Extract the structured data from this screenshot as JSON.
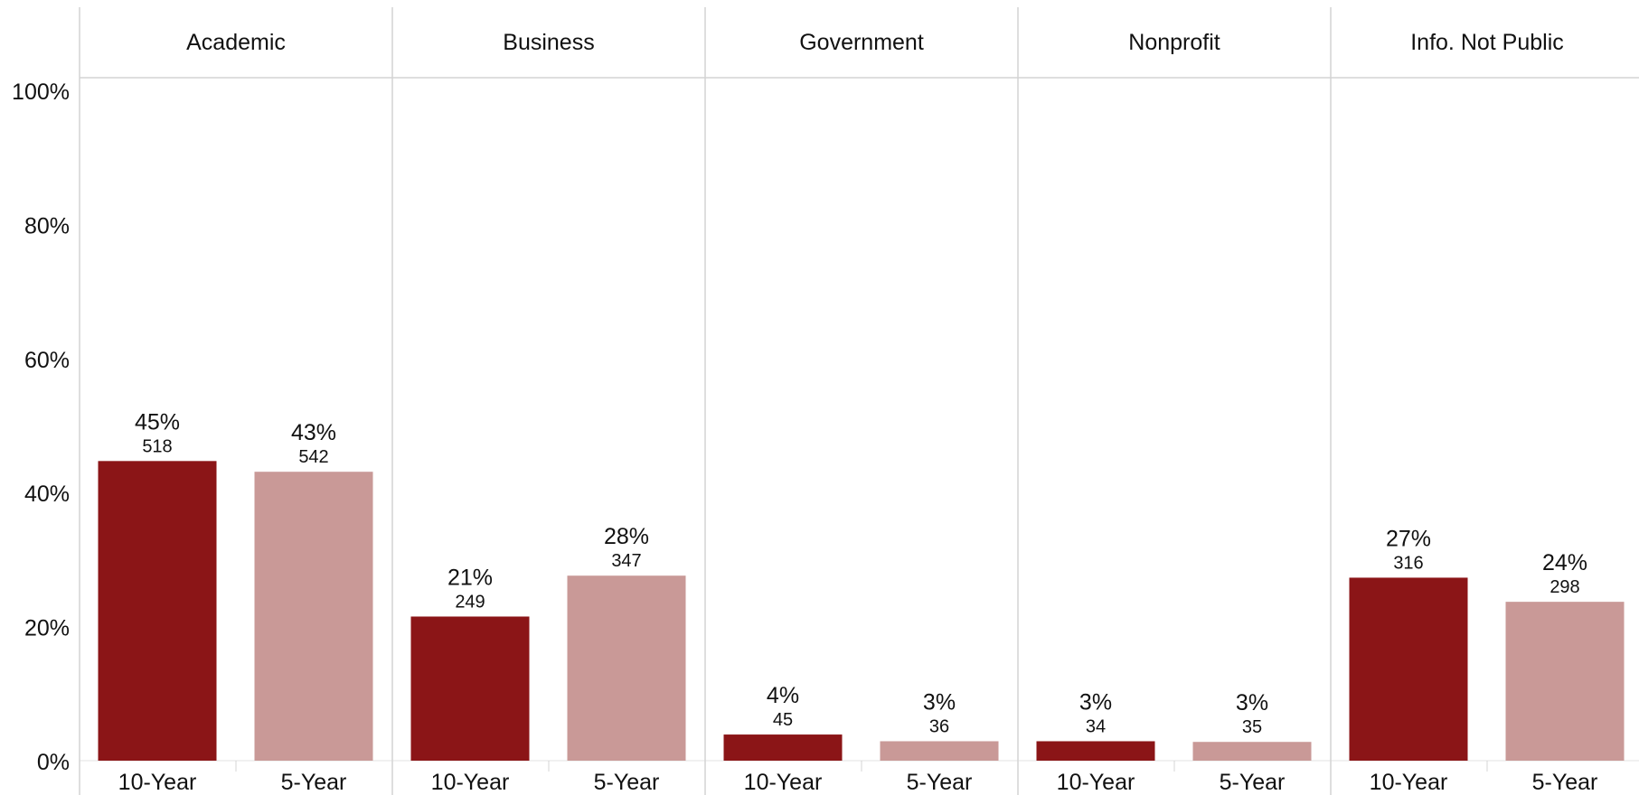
{
  "chart_data": {
    "type": "bar",
    "panels": [
      "Academic",
      "Business",
      "Government",
      "Nonprofit",
      "Info. Not Public"
    ],
    "categories": [
      "10-Year",
      "5-Year"
    ],
    "colors": {
      "10-Year": "#8b1517",
      "5-Year": "#c99997"
    },
    "yticks": [
      "0%",
      "20%",
      "40%",
      "60%",
      "80%",
      "100%"
    ],
    "ylim": [
      0,
      100
    ],
    "values": [
      {
        "panel": "Academic",
        "series": "10-Year",
        "percent": 44.7,
        "pct_label": "45%",
        "count": "518"
      },
      {
        "panel": "Academic",
        "series": "5-Year",
        "percent": 43.1,
        "pct_label": "43%",
        "count": "542"
      },
      {
        "panel": "Business",
        "series": "10-Year",
        "percent": 21.5,
        "pct_label": "21%",
        "count": "249"
      },
      {
        "panel": "Business",
        "series": "5-Year",
        "percent": 27.6,
        "pct_label": "28%",
        "count": "347"
      },
      {
        "panel": "Government",
        "series": "10-Year",
        "percent": 3.9,
        "pct_label": "4%",
        "count": "45"
      },
      {
        "panel": "Government",
        "series": "5-Year",
        "percent": 2.9,
        "pct_label": "3%",
        "count": "36"
      },
      {
        "panel": "Nonprofit",
        "series": "10-Year",
        "percent": 2.9,
        "pct_label": "3%",
        "count": "34"
      },
      {
        "panel": "Nonprofit",
        "series": "5-Year",
        "percent": 2.8,
        "pct_label": "3%",
        "count": "35"
      },
      {
        "panel": "Info. Not Public",
        "series": "10-Year",
        "percent": 27.3,
        "pct_label": "27%",
        "count": "316"
      },
      {
        "panel": "Info. Not Public",
        "series": "5-Year",
        "percent": 23.7,
        "pct_label": "24%",
        "count": "298"
      }
    ]
  }
}
